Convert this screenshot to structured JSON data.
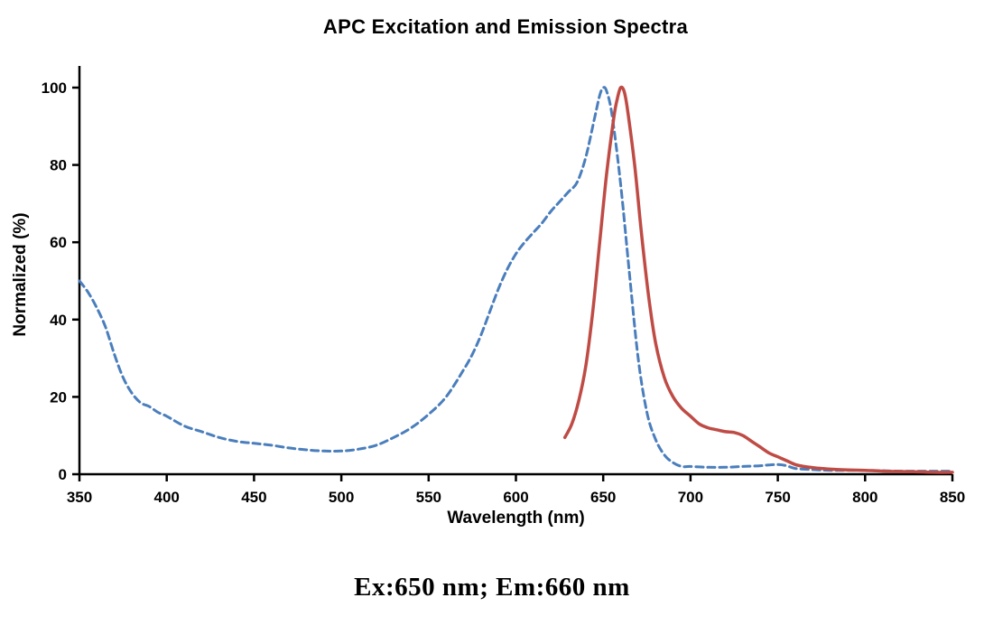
{
  "title": "APC Excitation and Emission Spectra",
  "caption": "Ex:650 nm; Em:660 nm",
  "chart_data": {
    "type": "line",
    "title": "APC Excitation and Emission Spectra",
    "xlabel": "Wavelength (nm)",
    "ylabel": "Normalized (%)",
    "xlim": [
      350,
      850
    ],
    "ylim": [
      0,
      100
    ],
    "xticks": [
      350,
      400,
      450,
      500,
      550,
      600,
      650,
      700,
      750,
      800,
      850
    ],
    "yticks": [
      0,
      20,
      40,
      60,
      80,
      100
    ],
    "grid": false,
    "legend": "none",
    "axis_color": "#000000",
    "series": [
      {
        "name": "Excitation",
        "style": "dashed",
        "color": "#4a7ebc",
        "width": 3,
        "x": [
          350,
          355,
          360,
          365,
          370,
          375,
          380,
          385,
          390,
          395,
          400,
          410,
          420,
          430,
          440,
          450,
          460,
          470,
          480,
          490,
          500,
          510,
          520,
          530,
          540,
          550,
          560,
          570,
          575,
          580,
          585,
          590,
          595,
          600,
          605,
          610,
          615,
          620,
          625,
          630,
          635,
          640,
          645,
          648,
          650,
          652,
          655,
          660,
          665,
          670,
          675,
          680,
          685,
          690,
          695,
          700,
          710,
          720,
          730,
          740,
          745,
          750,
          755,
          760,
          770,
          780,
          790,
          800,
          810,
          820,
          830,
          840,
          850
        ],
        "y": [
          50,
          47,
          43,
          38,
          31,
          25,
          21,
          18.5,
          17.5,
          16,
          15,
          12.5,
          11,
          9.5,
          8.5,
          8,
          7.5,
          6.8,
          6.3,
          6,
          6,
          6.5,
          7.5,
          9.5,
          12,
          15.5,
          20,
          27,
          31,
          36,
          42,
          48,
          53,
          57,
          60,
          62.5,
          65,
          68,
          70.5,
          73,
          75.5,
          82,
          92,
          98,
          100,
          99,
          93,
          75,
          52,
          30,
          16,
          9,
          5,
          3,
          2,
          2,
          1.8,
          1.8,
          2,
          2.2,
          2.4,
          2.5,
          2.2,
          1.5,
          1.2,
          1,
          1,
          1,
          0.9,
          0.8,
          0.8,
          0.8,
          0.8
        ]
      },
      {
        "name": "Emission",
        "style": "solid",
        "color": "#bf4b45",
        "width": 3.5,
        "x": [
          628,
          632,
          636,
          640,
          644,
          648,
          652,
          656,
          658,
          660,
          662,
          664,
          668,
          672,
          676,
          680,
          685,
          690,
          695,
          700,
          705,
          710,
          715,
          720,
          725,
          730,
          735,
          740,
          745,
          750,
          755,
          760,
          765,
          770,
          775,
          780,
          790,
          800,
          810,
          820,
          830,
          840,
          850
        ],
        "y": [
          9.5,
          13,
          19,
          28,
          42,
          60,
          78,
          92,
          97,
          100,
          99,
          94,
          80,
          62,
          46,
          34,
          25,
          20,
          17,
          15,
          13,
          12,
          11.5,
          11,
          10.8,
          10,
          8.5,
          7,
          5.5,
          4.5,
          3.5,
          2.5,
          2,
          1.7,
          1.5,
          1.3,
          1.1,
          1,
          0.8,
          0.7,
          0.6,
          0.5,
          0.5
        ]
      }
    ]
  }
}
